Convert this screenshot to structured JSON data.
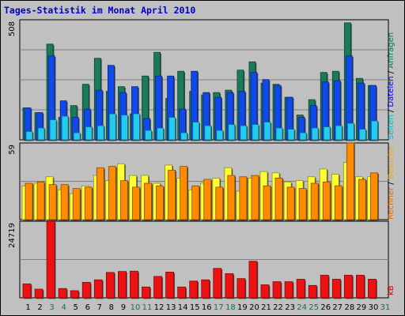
{
  "title": "Tages-Statistik im Monat April 2010",
  "chart_data": [
    {
      "type": "bar",
      "panel": "top",
      "ymax_label": "508",
      "ylim": [
        0,
        508
      ],
      "side_labels": [
        {
          "text": "Anfragen",
          "color": "#008040"
        },
        {
          "text": "Dateien",
          "color": "#0000ff"
        },
        {
          "text": "Seiten",
          "color": "#00c0c0"
        }
      ],
      "separator": " / ",
      "categories": [
        "1",
        "2",
        "3",
        "4",
        "5",
        "6",
        "7",
        "8",
        "9",
        "10",
        "11",
        "12",
        "13",
        "14",
        "15",
        "16",
        "17",
        "18",
        "19",
        "20",
        "21",
        "22",
        "23",
        "24",
        "25",
        "26",
        "27",
        "28",
        "29",
        "30",
        "31"
      ],
      "series": [
        {
          "name": "Anfragen",
          "color": "#1a7a5a",
          "values": [
            135,
            115,
            405,
            95,
            145,
            235,
            345,
            205,
            225,
            110,
            270,
            370,
            175,
            290,
            205,
            190,
            200,
            210,
            295,
            330,
            240,
            235,
            180,
            105,
            170,
            285,
            290,
            495,
            260,
            230,
            null
          ]
        },
        {
          "name": "Dateien",
          "color": "#1148e8",
          "values": [
            135,
            115,
            355,
            165,
            95,
            130,
            210,
            315,
            200,
            225,
            90,
            270,
            270,
            130,
            290,
            200,
            180,
            200,
            205,
            285,
            255,
            230,
            180,
            95,
            145,
            245,
            250,
            355,
            240,
            230,
            null
          ]
        },
        {
          "name": "Seiten",
          "color": "#22ccee",
          "values": [
            35,
            50,
            85,
            100,
            30,
            55,
            60,
            110,
            105,
            110,
            40,
            50,
            95,
            30,
            75,
            60,
            40,
            65,
            60,
            65,
            75,
            50,
            45,
            30,
            50,
            55,
            60,
            70,
            45,
            80,
            null
          ]
        }
      ]
    },
    {
      "type": "bar",
      "panel": "middle",
      "ymax_label": "59",
      "ylim": [
        0,
        59
      ],
      "side_labels": [
        {
          "text": "Besuche",
          "color": "#ffa500"
        },
        {
          "text": "Rechner",
          "color": "#e07000"
        }
      ],
      "separator": " / ",
      "categories": [
        "1",
        "2",
        "3",
        "4",
        "5",
        "6",
        "7",
        "8",
        "9",
        "10",
        "11",
        "12",
        "13",
        "14",
        "15",
        "16",
        "17",
        "18",
        "19",
        "20",
        "21",
        "22",
        "23",
        "24",
        "25",
        "26",
        "27",
        "28",
        "29",
        "30",
        "31"
      ],
      "series": [
        {
          "name": "Rechner",
          "color": "#ff8c00",
          "values": [
            28,
            29,
            27,
            27,
            24,
            25,
            40,
            41,
            30,
            25,
            28,
            26,
            38,
            41,
            26,
            31,
            25,
            34,
            33,
            34,
            26,
            32,
            25,
            24,
            28,
            29,
            26,
            59,
            31,
            36,
            null
          ]
        },
        {
          "name": "Besuche",
          "color": "#ffff33",
          "values": [
            26,
            28,
            33,
            23,
            20,
            26,
            34,
            30,
            43,
            34,
            34,
            28,
            42,
            32,
            23,
            28,
            32,
            40,
            22,
            32,
            37,
            36,
            29,
            30,
            33,
            39,
            35,
            44,
            33,
            33,
            null
          ]
        }
      ]
    },
    {
      "type": "bar",
      "panel": "bottom",
      "ymax_label": "24719",
      "ylim": [
        0,
        24719
      ],
      "side_labels": [
        {
          "text": "kB",
          "color": "#cc0000"
        }
      ],
      "separator": "",
      "categories": [
        "1",
        "2",
        "3",
        "4",
        "5",
        "6",
        "7",
        "8",
        "9",
        "10",
        "11",
        "12",
        "13",
        "14",
        "15",
        "16",
        "17",
        "18",
        "19",
        "20",
        "21",
        "22",
        "23",
        "24",
        "25",
        "26",
        "27",
        "28",
        "29",
        "30",
        "31"
      ],
      "series": [
        {
          "name": "kB",
          "color": "#ee1111",
          "values": [
            4500,
            2800,
            24719,
            3000,
            2300,
            5000,
            5800,
            8200,
            8500,
            8600,
            3500,
            6900,
            8300,
            3500,
            5400,
            5800,
            9500,
            7800,
            6200,
            11800,
            4200,
            5200,
            5200,
            6000,
            4000,
            7300,
            6000,
            7300,
            7300,
            6000,
            null
          ]
        }
      ]
    }
  ],
  "x_labels": {
    "days": [
      "1",
      "2",
      "3",
      "4",
      "5",
      "6",
      "7",
      "8",
      "9",
      "10",
      "11",
      "12",
      "13",
      "14",
      "15",
      "16",
      "17",
      "18",
      "19",
      "20",
      "21",
      "22",
      "23",
      "24",
      "25",
      "26",
      "27",
      "28",
      "29",
      "30",
      "31"
    ],
    "weekend": [
      "3",
      "4",
      "10",
      "11",
      "17",
      "18",
      "24",
      "25",
      "31"
    ],
    "weekday_color": "#000000",
    "weekend_color": "#008040"
  }
}
